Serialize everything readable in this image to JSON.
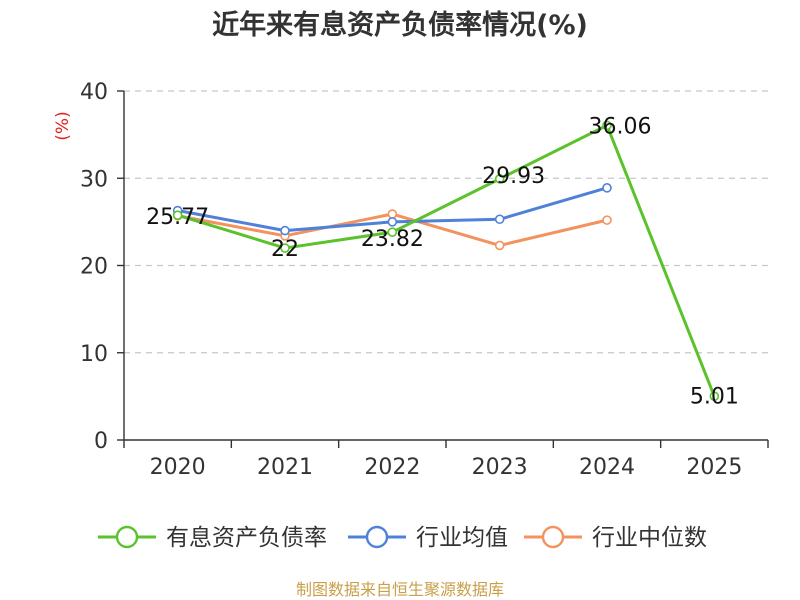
{
  "chart_data": {
    "type": "line",
    "title": "近年来有息资产负债率情况(%)",
    "ylabel": "(%)",
    "categories": [
      "2020",
      "2021",
      "2022",
      "2023",
      "2024",
      "2025"
    ],
    "ylim": [
      0,
      40
    ],
    "yticks": [
      "0",
      "10",
      "20",
      "30",
      "40"
    ],
    "grid": true,
    "legend_position": "bottom",
    "series": [
      {
        "name": "有息资产负债率",
        "color": "#5ac22a",
        "values": [
          25.77,
          22,
          23.82,
          29.93,
          36.06,
          5.01
        ],
        "labels": [
          "25.77",
          "22",
          "23.82",
          "29.93",
          "36.06",
          "5.01"
        ]
      },
      {
        "name": "行业均值",
        "color": "#4f81d9",
        "values": [
          26.3,
          24.0,
          25.0,
          25.3,
          28.9,
          null
        ]
      },
      {
        "name": "行业中位数",
        "color": "#f4925e",
        "values": [
          25.7,
          23.4,
          25.9,
          22.3,
          25.2,
          null
        ]
      }
    ]
  },
  "source": "制图数据来自恒生聚源数据库"
}
